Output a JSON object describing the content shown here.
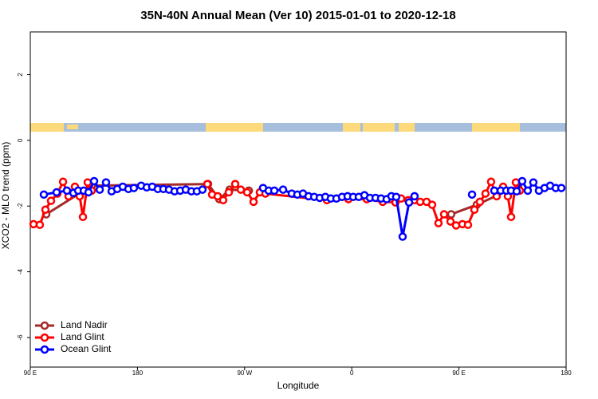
{
  "chart_data": {
    "type": "line",
    "title": "35N-40N Annual Mean (Ver 10)   2015-01-01 to 2020-12-18",
    "x_label": "Longitude",
    "y_label": "XCO2 - MLO trend (ppm)",
    "xlim": [
      90,
      540
    ],
    "xticks": [
      {
        "value": 90,
        "label": "90 E"
      },
      180,
      {
        "value": 270,
        "label": "90 W"
      },
      {
        "value": 360,
        "label": "0"
      },
      {
        "value": 450,
        "label": "90 E"
      },
      {
        "value": 540,
        "label": "180"
      }
    ],
    "ylim": [
      -6.9,
      3.3
    ],
    "yticks": [
      -6,
      -4,
      -2,
      0,
      2
    ],
    "legend": "bottom-left",
    "series": [
      {
        "name": "Land Nadir",
        "color": "#a52a2a",
        "x": [
          103.4,
          141.6,
          239.3,
          248.7,
          257.4,
          273.5,
          null,
          443.5,
          465.0,
          499.8
        ],
        "values": [
          -2.25,
          -1.38,
          -1.33,
          -1.79,
          -1.5,
          -1.53,
          null,
          -2.25,
          -1.96,
          -1.38
        ]
      },
      {
        "name": "Land Glint",
        "color": "#ff0000",
        "x": [
          92.7,
          98.0,
          102.7,
          107.4,
          112.8,
          117.5,
          122.1,
          127.5,
          131.5,
          134.2,
          138.2,
          141.6,
          null,
          238.7,
          242.7,
          247.4,
          252.0,
          256.7,
          262.1,
          266.8,
          272.1,
          277.5,
          282.8,
          287.5,
          339.1,
          357.2,
          372.6,
          386.0,
          392.0,
          396.7,
          401.4,
          407.4,
          412.7,
          417.4,
          422.8,
          427.5,
          432.8,
          437.5,
          442.9,
          447.6,
          452.9,
          457.6,
          463.0,
          467.6,
          472.3,
          477.0,
          481.7,
          487.1,
          491.1,
          493.8,
          497.8,
          501.1
        ],
        "values": [
          -2.55,
          -2.57,
          -2.11,
          -1.84,
          -1.62,
          -1.26,
          -1.7,
          -1.41,
          -1.7,
          -2.33,
          -1.28,
          -1.53,
          null,
          -1.33,
          -1.65,
          -1.7,
          -1.82,
          -1.58,
          -1.33,
          -1.5,
          -1.58,
          -1.87,
          -1.58,
          -1.62,
          -1.82,
          -1.79,
          -1.79,
          -1.87,
          -1.79,
          -1.89,
          -1.77,
          -1.82,
          -1.82,
          -1.87,
          -1.87,
          -1.96,
          -2.52,
          -2.25,
          -2.47,
          -2.59,
          -2.55,
          -2.57,
          -2.11,
          -1.87,
          -1.62,
          -1.26,
          -1.7,
          -1.41,
          -1.7,
          -2.33,
          -1.28,
          -1.53
        ]
      },
      {
        "name": "Ocean Glint",
        "color": "#0000ff",
        "x": [
          101.4,
          112.1,
          120.8,
          126.2,
          130.2,
          134.9,
          138.9,
          143.6,
          148.3,
          153.6,
          158.3,
          163.0,
          167.7,
          172.4,
          177.0,
          183.1,
          187.8,
          192.4,
          197.1,
          201.8,
          206.5,
          211.2,
          215.9,
          220.6,
          225.3,
          229.9,
          234.6,
          null,
          285.5,
          290.2,
          294.9,
          302.3,
          309.6,
          314.3,
          319.0,
          323.7,
          328.4,
          333.1,
          337.8,
          342.4,
          347.1,
          351.8,
          356.5,
          361.2,
          365.9,
          370.6,
          375.3,
          380.0,
          384.6,
          389.3,
          393.3,
          397.3,
          402.7,
          408.1,
          412.7,
          null,
          461.0,
          null,
          479.7,
          485.1,
          489.8,
          493.8,
          498.5,
          503.1,
          507.8,
          512.5,
          517.2,
          521.9,
          526.6,
          531.3,
          536.0
        ],
        "values": [
          -1.65,
          -1.58,
          -1.53,
          -1.6,
          -1.53,
          -1.53,
          -1.58,
          -1.24,
          -1.5,
          -1.28,
          -1.55,
          -1.48,
          -1.41,
          -1.48,
          -1.45,
          -1.38,
          -1.43,
          -1.41,
          -1.48,
          -1.48,
          -1.5,
          -1.55,
          -1.53,
          -1.5,
          -1.55,
          -1.55,
          -1.5,
          null,
          -1.45,
          -1.53,
          -1.53,
          -1.5,
          -1.62,
          -1.65,
          -1.62,
          -1.7,
          -1.72,
          -1.75,
          -1.72,
          -1.77,
          -1.77,
          -1.72,
          -1.7,
          -1.72,
          -1.72,
          -1.67,
          -1.75,
          -1.75,
          -1.77,
          -1.79,
          -1.7,
          -1.72,
          -2.93,
          -1.89,
          -1.7,
          null,
          -1.65,
          null,
          -1.53,
          -1.53,
          -1.53,
          -1.53,
          -1.55,
          -1.24,
          -1.53,
          -1.28,
          -1.53,
          -1.45,
          -1.38,
          -1.45,
          -1.45
        ]
      }
    ]
  }
}
